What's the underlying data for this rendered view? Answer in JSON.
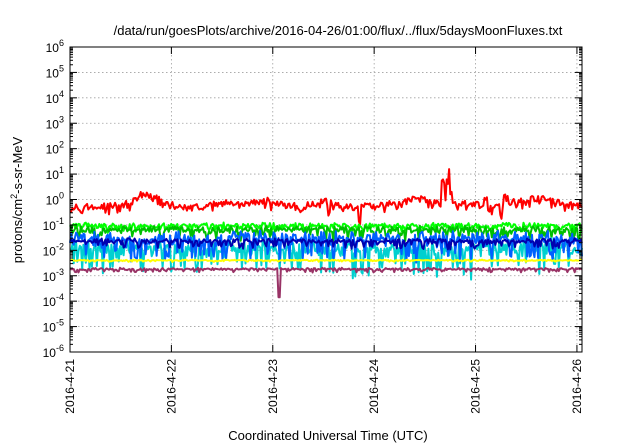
{
  "chart_data": {
    "type": "line",
    "title": "/data/run/goesPlots/archive/2016-04-26/01:00/flux/../flux/5daysMoonFluxes.txt",
    "xlabel": "Coordinated Universal Time (UTC)",
    "ylabel_parts": {
      "main": "protons/cm",
      "sup": "2",
      "rest": "-s-sr-MeV"
    },
    "x_ticks": [
      "2016-4-21",
      "2016-4-22",
      "2016-4-23",
      "2016-4-24",
      "2016-4-25",
      "2016-4-26"
    ],
    "x_range_days": [
      0,
      5.05
    ],
    "y_scale": "log",
    "y_tick_exponents": [
      -6,
      -5,
      -4,
      -3,
      -2,
      -1,
      0,
      1,
      2,
      3,
      4,
      5,
      6
    ],
    "y_tick_base": "10",
    "ylim": [
      1e-06,
      1000000.0
    ],
    "grid": true,
    "series": [
      {
        "color": "#ff0000",
        "base": 0.5,
        "amp": 0.1,
        "noise": 0.12,
        "bumps": [
          [
            0.75,
            1.7,
            0.15
          ],
          [
            1.5,
            0.7,
            0.12
          ],
          [
            1.9,
            0.9,
            0.2
          ],
          [
            2.5,
            0.9,
            0.12
          ],
          [
            3.4,
            1.2,
            0.2
          ],
          [
            3.9,
            0.7,
            0.2
          ],
          [
            4.6,
            1.2,
            0.25
          ],
          [
            5.0,
            0.5,
            0.1
          ]
        ],
        "dips": [
          [
            2.55,
            -0.5
          ],
          [
            2.86,
            -0.6
          ],
          [
            4.25,
            -0.4
          ]
        ],
        "spikes": [
          [
            3.68,
            0.85
          ],
          [
            3.73,
            0.85
          ],
          [
            3.75,
            0.5
          ],
          [
            4.1,
            0.3
          ],
          [
            4.3,
            0.4
          ]
        ]
      },
      {
        "color": "#00ff00",
        "base": 0.09,
        "amp": 0.09,
        "noise": 0.08,
        "bumps": [],
        "dips": [],
        "spikes": []
      },
      {
        "color": "#00c000",
        "base": 0.06,
        "amp": 0.15,
        "noise": 0.1,
        "bumps": [],
        "dips": [],
        "spikes": []
      },
      {
        "color": "#00d0d0",
        "base": 0.01,
        "amp": 0.45,
        "noise": 0.2,
        "bumps": [],
        "dips": [],
        "spikes": []
      },
      {
        "color": "#0060ff",
        "base": 0.025,
        "amp": 0.35,
        "noise": 0.15,
        "bumps": [],
        "dips": [],
        "spikes": []
      },
      {
        "color": "#0000b0",
        "base": 0.022,
        "amp": 0.12,
        "noise": 0.06,
        "bumps": [],
        "dips": [],
        "spikes": []
      },
      {
        "color": "#ffff00",
        "base": 0.004,
        "amp": 0.02,
        "noise": 0.02,
        "bumps": [],
        "dips": [],
        "spikes": []
      },
      {
        "color": "#993366",
        "base": 0.0018,
        "amp": 0.05,
        "noise": 0.03,
        "bumps": [],
        "dips": [
          [
            2.06,
            -1.1
          ]
        ],
        "spikes": []
      }
    ]
  }
}
